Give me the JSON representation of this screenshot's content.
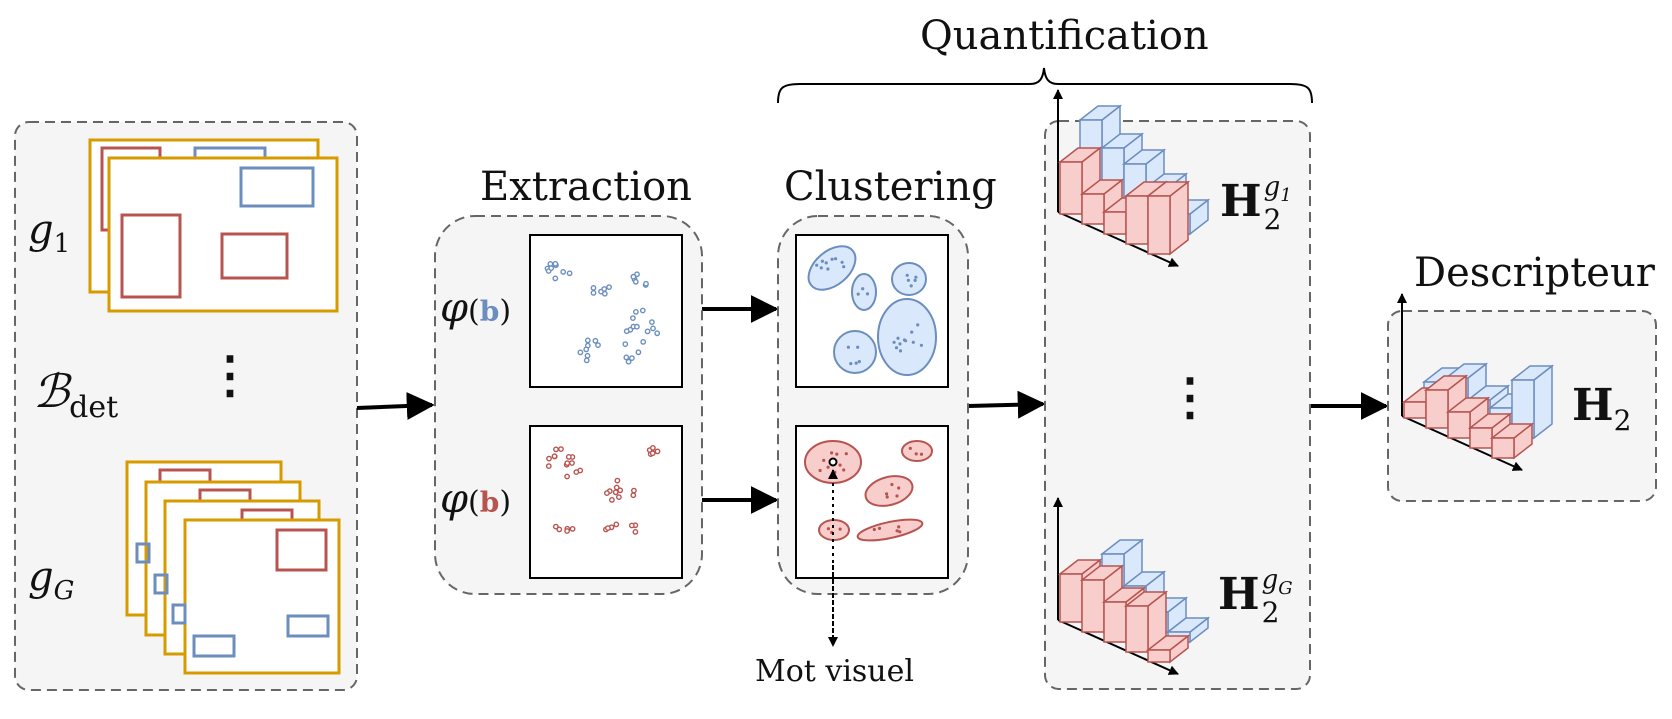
{
  "titles": {
    "quantification": "Quantification",
    "extraction": "Extraction",
    "clustering": "Clustering",
    "descripteur": "Descripteur"
  },
  "input": {
    "g1": {
      "base": "g",
      "sub": "1"
    },
    "gG": {
      "base": "g",
      "sub": "G"
    },
    "bdet": {
      "base": "ℬ",
      "sub": "det"
    },
    "ellipsis": "⋮"
  },
  "extraction": {
    "phi_symbol": "φ",
    "open_paren": "(",
    "b_blue": "b",
    "b_red": "b",
    "close_paren": ")"
  },
  "annotation": {
    "visual_word": "Mot visuel"
  },
  "histograms": {
    "h2_g1": {
      "base": "H",
      "sub": "2",
      "sup_base": "g",
      "sup_sub": "1"
    },
    "h2_gG": {
      "base": "H",
      "sub": "2",
      "sup_base": "g",
      "sup_sub": "G"
    },
    "ellipsis": "⋮",
    "h2": {
      "base": "H",
      "sub": "2"
    }
  },
  "colors": {
    "blue_stroke": "#6c8ebf",
    "blue_fill": "#dae8fc",
    "red_stroke": "#b85450",
    "red_fill": "#f8cecc",
    "frame_gold": "#d79b00",
    "panel_fill": "#f5f5f5",
    "panel_dash": "#666666"
  }
}
